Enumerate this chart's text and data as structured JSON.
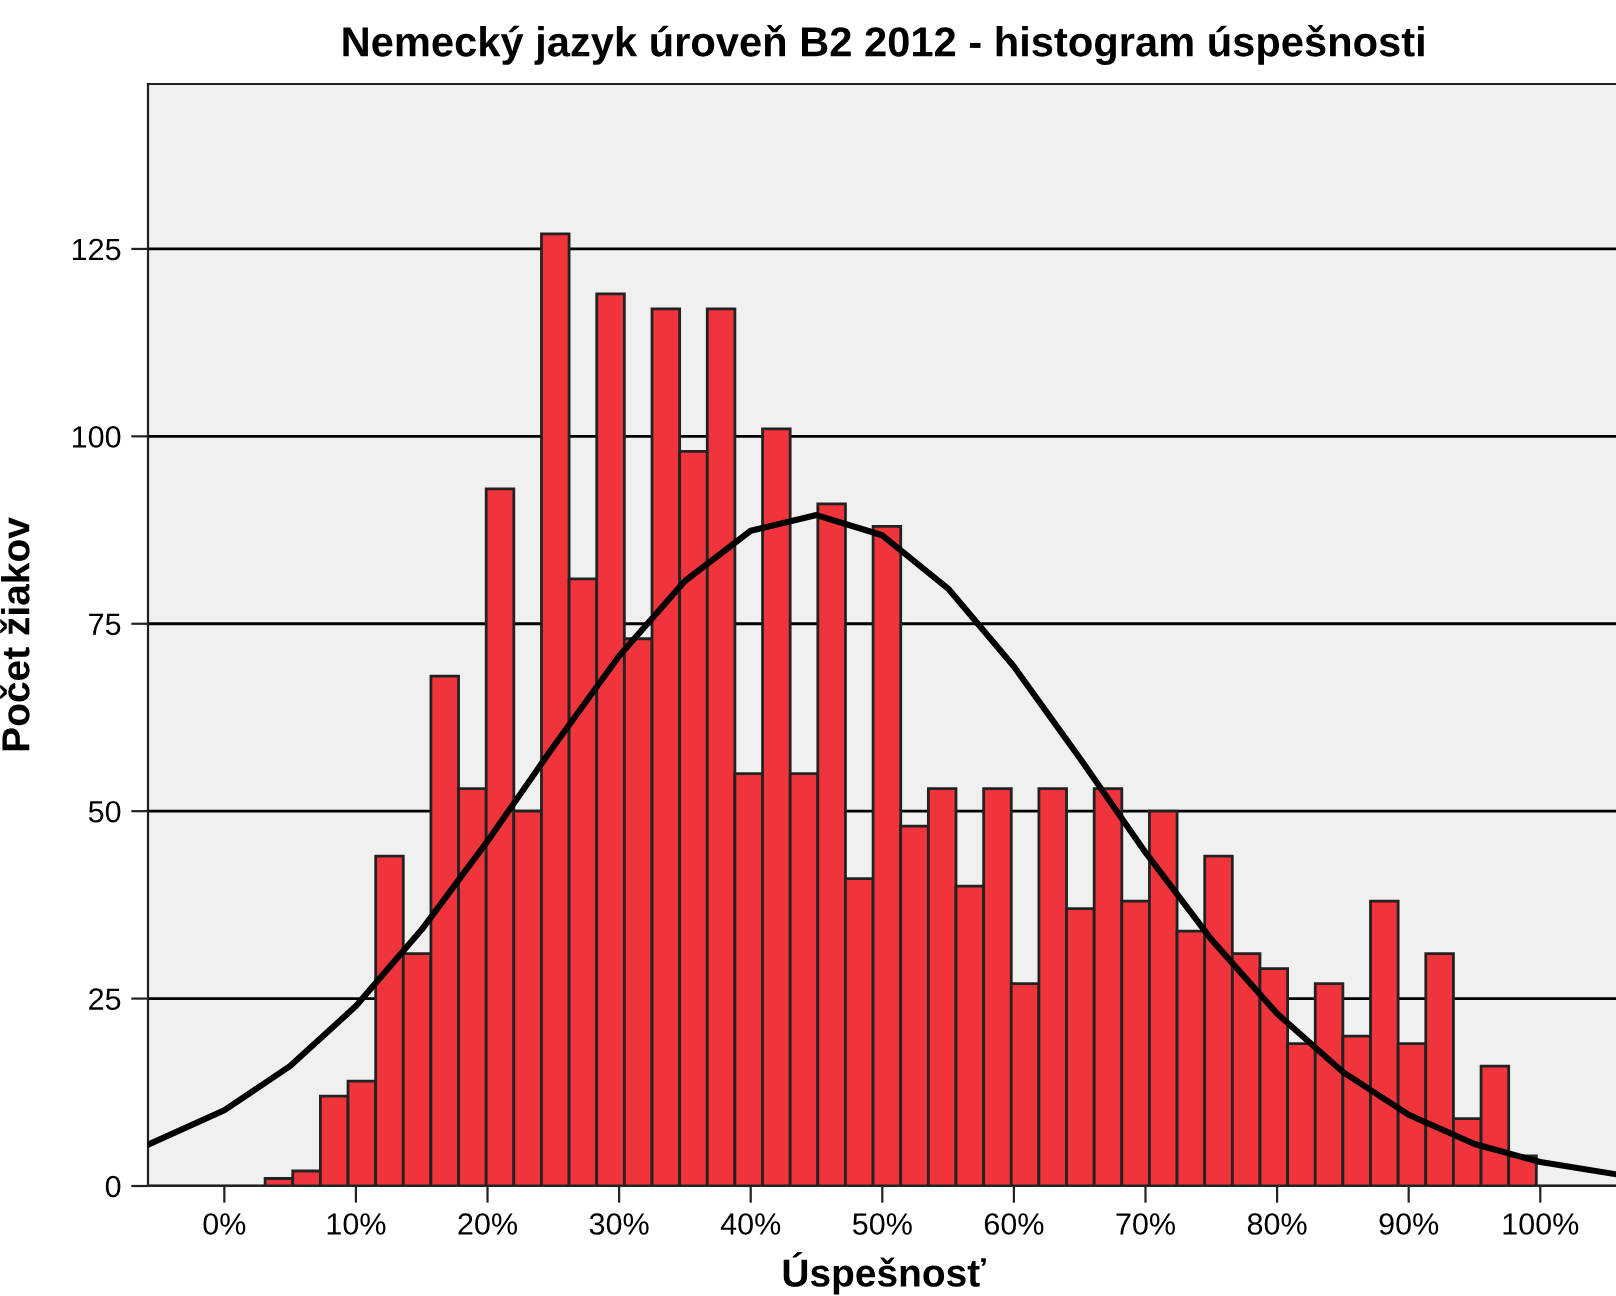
{
  "chart_data": {
    "type": "histogram",
    "title": "Nemecký jazyk úroveň B2 2012 - histogram úspešnosti",
    "xlabel": "Úspešnosť",
    "ylabel": "Počet žiakov",
    "color": "#f0343c",
    "bins": [
      3.1,
      5.2,
      7.3,
      9.4,
      11.5,
      13.6,
      15.7,
      17.8,
      19.9,
      22.0,
      24.1,
      26.2,
      28.3,
      30.4,
      32.5,
      34.6,
      36.7,
      38.8,
      40.9,
      43.0,
      45.1,
      47.2,
      49.3,
      51.4,
      53.5,
      55.6,
      57.7,
      59.8,
      61.9,
      64.0,
      66.1,
      68.2,
      70.3,
      72.4,
      74.5,
      76.6,
      78.7,
      80.8,
      82.9,
      85.0,
      87.1,
      89.2,
      91.3,
      93.4,
      95.5,
      97.6,
      99.7
    ],
    "values": [
      1,
      2,
      12,
      14,
      44,
      31,
      68,
      53,
      93,
      50,
      127,
      81,
      119,
      73,
      117,
      98,
      117,
      55,
      101,
      55,
      91,
      41,
      88,
      48,
      53,
      40,
      53,
      27,
      53,
      37,
      53,
      38,
      50,
      34,
      44,
      31,
      29,
      19,
      27,
      20,
      38,
      19,
      31,
      9,
      16,
      4
    ],
    "series": [
      {
        "type": "line",
        "color": "#000000",
        "x": [
          -5.8,
          0,
          5,
          10,
          15,
          20,
          25,
          30,
          35,
          40,
          45,
          50,
          55,
          60,
          65,
          70,
          75,
          80,
          85,
          90,
          95,
          100,
          106
        ],
        "values": [
          5.5,
          10.1,
          16.0,
          24.0,
          34.2,
          46.0,
          58.6,
          70.7,
          80.7,
          87.4,
          89.5,
          86.8,
          79.7,
          69.3,
          57.1,
          44.5,
          32.9,
          23.0,
          15.2,
          9.5,
          5.6,
          3.2,
          1.5
        ]
      }
    ],
    "xlim": [
      -5.8,
      106
    ],
    "ylim": [
      0,
      147
    ],
    "xticks": [
      {
        "value": 0,
        "label": "0%"
      },
      {
        "value": 10,
        "label": "10%"
      },
      {
        "value": 20,
        "label": "20%"
      },
      {
        "value": 30,
        "label": "30%"
      },
      {
        "value": 40,
        "label": "40%"
      },
      {
        "value": 50,
        "label": "50%"
      },
      {
        "value": 60,
        "label": "60%"
      },
      {
        "value": 70,
        "label": "70%"
      },
      {
        "value": 80,
        "label": "80%"
      },
      {
        "value": 90,
        "label": "90%"
      },
      {
        "value": 100,
        "label": "100%"
      }
    ],
    "yticks": [
      0,
      25,
      50,
      75,
      100,
      125
    ],
    "grid": "y",
    "legend": false
  }
}
